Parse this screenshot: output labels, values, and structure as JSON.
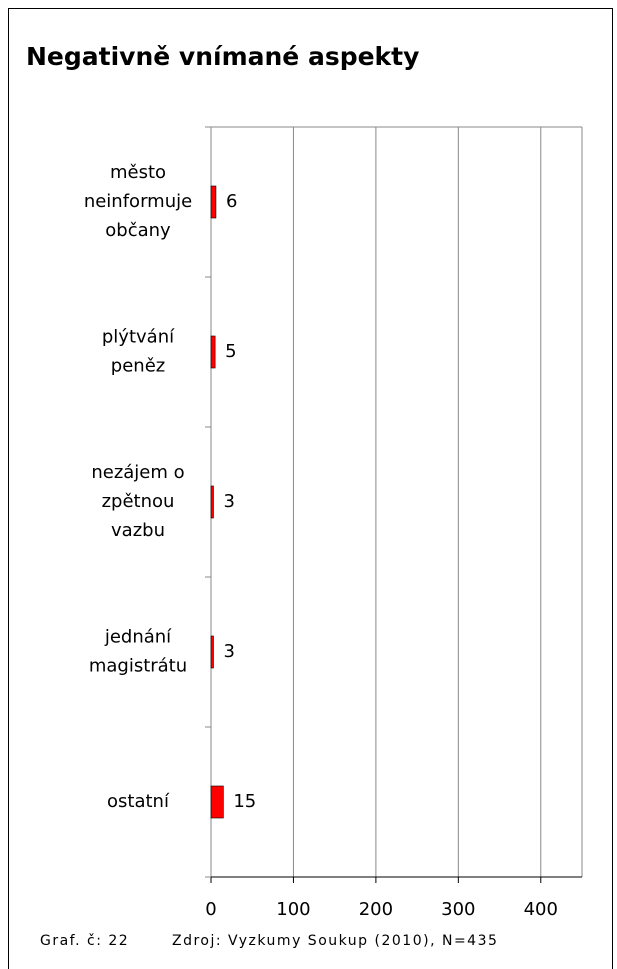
{
  "chart_data": {
    "type": "barh",
    "title": "Negativně vnímané aspekty",
    "categories": [
      [
        "město",
        "neinformuje",
        "občany"
      ],
      [
        "plýtvání",
        "peněz"
      ],
      [
        "nezájem o",
        "zpětnou",
        "vazbu"
      ],
      [
        "jednání",
        "magistrátu"
      ],
      [
        "ostatní"
      ]
    ],
    "values": [
      6,
      5,
      3,
      3,
      15
    ],
    "color": "#ff0000",
    "xlim": [
      0,
      450
    ],
    "xticks": [
      0,
      100,
      200,
      300,
      400
    ],
    "grid": true,
    "footer": [
      "Graf. č: 22",
      "Zdroj: Vyzkumy Soukup (2010), N=435"
    ]
  }
}
